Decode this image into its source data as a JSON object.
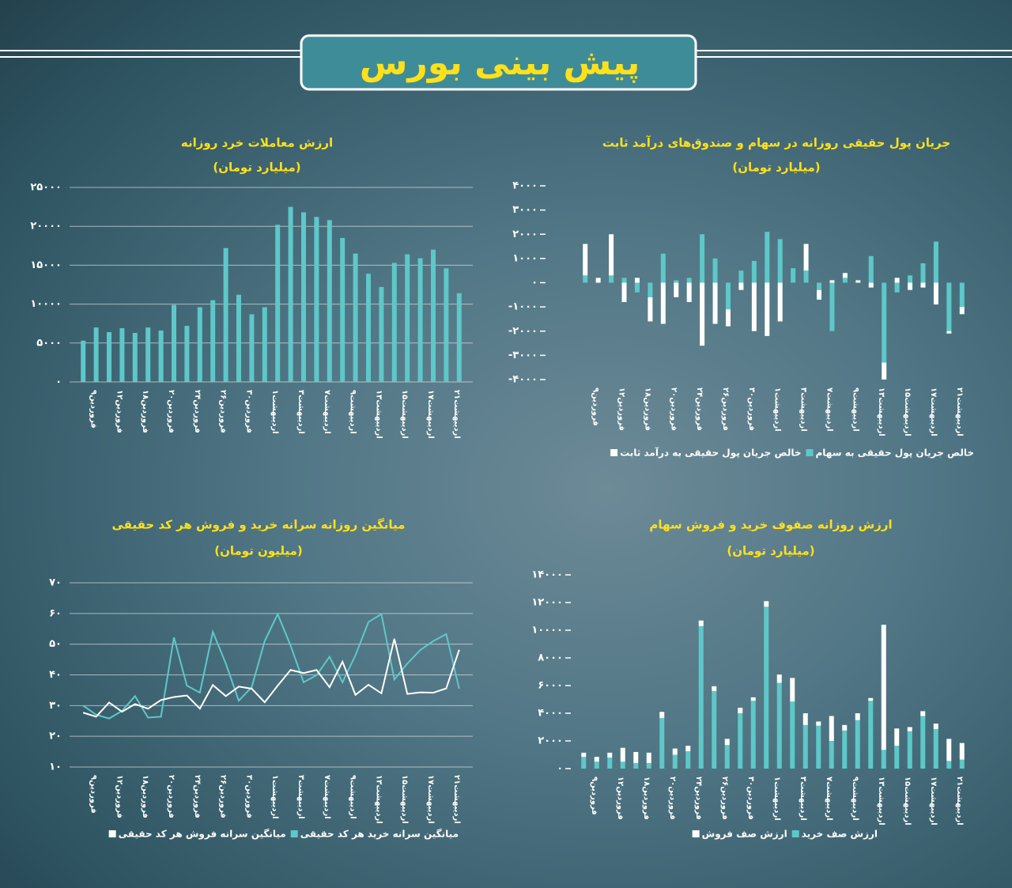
{
  "header": {
    "title": "پیش بینی بورس"
  },
  "chart_data": [
    {
      "type": "bar",
      "title": "ارزش معاملات خرد روزانه",
      "subtitle": "(میلیارد تومان)",
      "categories": [
        null,
        "فروردین۹",
        null,
        "فروردین۱۲",
        null,
        "فروردین۱۸",
        null,
        "فروردین۲۰",
        null,
        "فروردین۲۴",
        null,
        "فروردین۲۶",
        null,
        "فروردین۳۰",
        null,
        "اردیبهشت۱",
        null,
        "اردیبهشت۳",
        null,
        "اردیبهشت۷",
        null,
        "اردیبهشت۹",
        null,
        "اردیبهشت۱۳",
        null,
        "اردیبهشت۱۵",
        null,
        "اردیبهشت۱۷",
        null,
        "اردیبهشت۲۱"
      ],
      "values": [
        5300,
        7000,
        6400,
        6900,
        6300,
        7000,
        6600,
        9900,
        7200,
        9600,
        10500,
        17200,
        11200,
        8700,
        9600,
        20200,
        22500,
        21800,
        21200,
        20800,
        18500,
        16500,
        13900,
        12200,
        15300,
        16400,
        15900,
        17000,
        14600,
        11400
      ],
      "color": "#5ec8c8",
      "ylim": [
        0,
        25000
      ],
      "yticks": [
        {
          "value": 0,
          "label": "۰"
        },
        {
          "value": 5000,
          "label": "۵۰۰۰"
        },
        {
          "value": 10000,
          "label": "۱۰۰۰۰"
        },
        {
          "value": 15000,
          "label": "۱۵۰۰۰"
        },
        {
          "value": 20000,
          "label": "۲۰۰۰۰"
        },
        {
          "value": 25000,
          "label": "۲۵۰۰۰"
        }
      ],
      "grid": true
    },
    {
      "type": "stacked_bar",
      "title": "جریان پول حقیقی روزانه در سهام و صندوق‌های درآمد ثابت",
      "subtitle": "(میلیارد تومان)",
      "categories": [
        null,
        "فروردین۹",
        null,
        "فروردین۱۲",
        null,
        "فروردین۱۸",
        null,
        "فروردین۲۰",
        null,
        "فروردین۲۴",
        null,
        "فروردین۲۶",
        null,
        "فروردین۳۰",
        null,
        "اردیبهشت۱",
        null,
        "اردیبهشت۳",
        null,
        "اردیبهشت۷",
        null,
        "اردیبهشت۹",
        null,
        "اردیبهشت۱۳",
        null,
        "اردیبهشت۱۵",
        null,
        "اردیبهشت۱۷",
        null,
        "اردیبهشت۲۱"
      ],
      "series": [
        {
          "name": "خالص جریان پول حقیقی به سهام",
          "color": "#5ec8c8",
          "values": [
            300,
            0,
            300,
            200,
            -400,
            -600,
            1200,
            100,
            200,
            2000,
            1000,
            -1100,
            500,
            900,
            2100,
            1800,
            600,
            500,
            -300,
            -2000,
            200,
            0,
            1100,
            -3300,
            -400,
            300,
            800,
            1700,
            -2000,
            -1000
          ]
        },
        {
          "name": "خالص جریان پول حقیقی به درآمد ثابت",
          "color": "#ffffff",
          "values": [
            1300,
            200,
            1700,
            -800,
            200,
            -1000,
            -1700,
            -600,
            -800,
            -2600,
            -1700,
            -700,
            -300,
            -2000,
            -2200,
            -1600,
            0,
            1100,
            -400,
            100,
            200,
            100,
            -200,
            -700,
            200,
            -300,
            -200,
            -900,
            -100,
            -300
          ]
        }
      ],
      "ylim": [
        -4000,
        4000
      ],
      "yticks": [
        {
          "value": -4000,
          "label": "-۴۰۰۰"
        },
        {
          "value": -3000,
          "label": "-۳۰۰۰"
        },
        {
          "value": -2000,
          "label": "-۲۰۰۰"
        },
        {
          "value": -1000,
          "label": "-۱۰۰۰"
        },
        {
          "value": 0,
          "label": "۰"
        },
        {
          "value": 1000,
          "label": "۱۰۰۰"
        },
        {
          "value": 2000,
          "label": "۲۰۰۰"
        },
        {
          "value": 3000,
          "label": "۳۰۰۰"
        },
        {
          "value": 4000,
          "label": "۴۰۰۰"
        }
      ],
      "grid": false
    },
    {
      "type": "line",
      "title": "میانگین روزانه سرانه خرید و فروش هر کد حقیقی",
      "subtitle": "(میلیون تومان)",
      "categories": [
        null,
        "فروردین۹",
        null,
        "فروردین۱۲",
        null,
        "فروردین۱۸",
        null,
        "فروردین۲۰",
        null,
        "فروردین۲۴",
        null,
        "فروردین۲۶",
        null,
        "فروردین۳۰",
        null,
        "اردیبهشت۱",
        null,
        "اردیبهشت۳",
        null,
        "اردیبهشت۷",
        null,
        "اردیبهشت۹",
        null,
        "اردیبهشت۱۳",
        null,
        "اردیبهشت۱۵",
        null,
        "اردیبهشت۱۷",
        null,
        "اردیبهشت۲۱"
      ],
      "series": [
        {
          "name": "میانگین سرانه خرید هر کد حقیقی",
          "color": "#5ec8c8",
          "values": [
            30,
            27,
            25.8,
            28.3,
            33.1,
            26.1,
            26.4,
            52.2,
            36.5,
            34.2,
            54,
            43.7,
            31.6,
            36,
            51,
            59.8,
            49.5,
            37.6,
            39.9,
            45.9,
            37.6,
            46.4,
            57.2,
            59.8,
            38.5,
            43.7,
            48.1,
            51,
            53.3,
            35.5
          ]
        },
        {
          "name": "میانگین سرانه فروش هر کد حقیقی",
          "color": "#ffffff",
          "values": [
            27.7,
            26.4,
            31,
            28,
            30.5,
            29,
            31.8,
            32.8,
            33.3,
            29,
            36.7,
            33.1,
            36.2,
            35.5,
            31.1,
            36.5,
            41.6,
            40.6,
            41.6,
            36,
            44.3,
            33.5,
            36.8,
            34,
            51.8,
            33.8,
            34.3,
            34.2,
            35.6,
            48.2
          ]
        }
      ],
      "ylim": [
        10,
        70
      ],
      "yticks": [
        {
          "value": 10,
          "label": "۱۰"
        },
        {
          "value": 20,
          "label": "۲۰"
        },
        {
          "value": 30,
          "label": "۳۰"
        },
        {
          "value": 40,
          "label": "۴۰"
        },
        {
          "value": 50,
          "label": "۵۰"
        },
        {
          "value": 60,
          "label": "۶۰"
        },
        {
          "value": 70,
          "label": "۷۰"
        }
      ],
      "grid": true
    },
    {
      "type": "stacked_bar",
      "title": "ارزش روزانه صفوف خرید و فروش سهام",
      "subtitle": "(میلیارد تومان)",
      "categories": [
        null,
        "فروردین۹",
        null,
        "فروردین۱۲",
        null,
        "فروردین۱۸",
        null,
        "فروردین۲۰",
        null,
        "فروردین۲۴",
        null,
        "فروردین۲۶",
        null,
        "فروردین۳۰",
        null,
        "اردیبهشت۱",
        null,
        "اردیبهشت۳",
        null,
        "اردیبهشت۷",
        null,
        "اردیبهشت۹",
        null,
        "اردیبهشت۱۳",
        null,
        "اردیبهشت۱۵",
        null,
        "اردیبهشت۱۷",
        null,
        "اردیبهشت۲۱"
      ],
      "series": [
        {
          "name": "ارزش صف خرید",
          "color": "#5ec8c8",
          "values": [
            850,
            500,
            800,
            500,
            400,
            400,
            3650,
            1000,
            1250,
            10300,
            5600,
            1700,
            4000,
            4900,
            11700,
            6200,
            4850,
            3150,
            3100,
            2000,
            2750,
            3500,
            4900,
            1350,
            1650,
            2700,
            3800,
            2850,
            550,
            650
          ]
        },
        {
          "name": "ارزش صف فروش",
          "color": "#ffffff",
          "values": [
            300,
            350,
            350,
            1000,
            800,
            750,
            450,
            450,
            400,
            400,
            350,
            450,
            400,
            250,
            400,
            600,
            1700,
            850,
            300,
            1800,
            400,
            500,
            200,
            9050,
            1250,
            300,
            350,
            400,
            1600,
            1200
          ]
        }
      ],
      "ylim": [
        0,
        14000
      ],
      "yticks": [
        {
          "value": 0,
          "label": "۰"
        },
        {
          "value": 2000,
          "label": "۲۰۰۰"
        },
        {
          "value": 4000,
          "label": "۴۰۰۰"
        },
        {
          "value": 6000,
          "label": "۶۰۰۰"
        },
        {
          "value": 8000,
          "label": "۸۰۰۰"
        },
        {
          "value": 10000,
          "label": "۱۰۰۰۰"
        },
        {
          "value": 12000,
          "label": "۱۲۰۰۰"
        },
        {
          "value": 14000,
          "label": "۱۴۰۰۰"
        }
      ],
      "grid": false
    }
  ]
}
